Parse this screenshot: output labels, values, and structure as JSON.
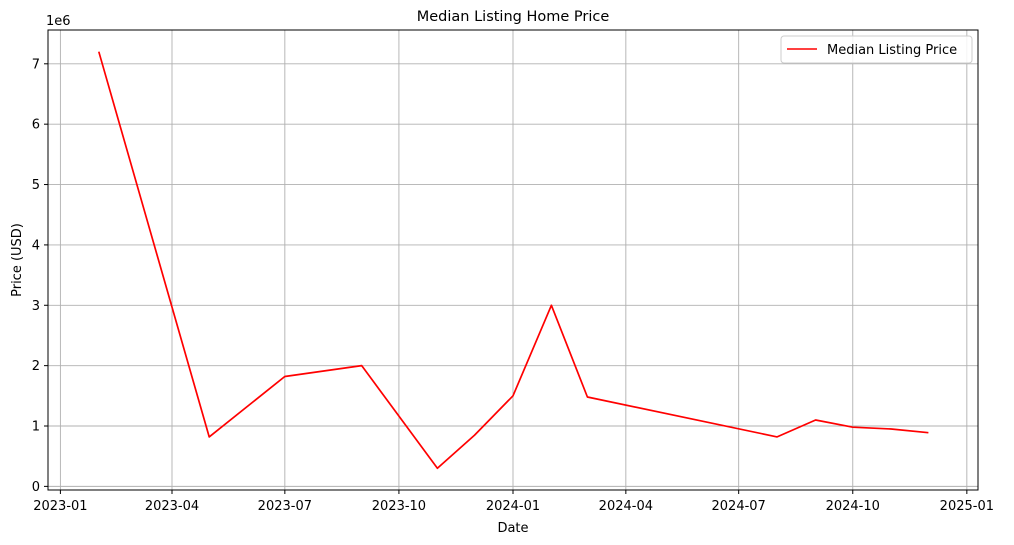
{
  "chart_data": {
    "type": "line",
    "title": "Median Listing Home Price",
    "xlabel": "Date",
    "ylabel": "Price (USD)",
    "y_scale_label": "1e6",
    "y_multiplier": 1000000,
    "grid": true,
    "legend_placement": "top-right",
    "x_ticks": [
      "2023-01",
      "2023-04",
      "2023-07",
      "2023-10",
      "2024-01",
      "2024-04",
      "2024-07",
      "2024-10",
      "2025-01"
    ],
    "y_ticks": [
      "0",
      "1",
      "2",
      "3",
      "4",
      "5",
      "6",
      "7"
    ],
    "xlim": [
      "2022-12-22",
      "2025-01-10"
    ],
    "ylim": [
      -60000,
      7560000
    ],
    "series": [
      {
        "name": "Median Listing Price",
        "color": "#ff0000",
        "points": [
          {
            "date": "2023-02-01",
            "value": 7200000
          },
          {
            "date": "2023-05-01",
            "value": 820000
          },
          {
            "date": "2023-07-01",
            "value": 1820000
          },
          {
            "date": "2023-09-01",
            "value": 2000000
          },
          {
            "date": "2023-11-01",
            "value": 300000
          },
          {
            "date": "2023-12-01",
            "value": 850000
          },
          {
            "date": "2024-01-01",
            "value": 1500000
          },
          {
            "date": "2024-02-01",
            "value": 3000000
          },
          {
            "date": "2024-03-01",
            "value": 1480000
          },
          {
            "date": "2024-08-01",
            "value": 820000
          },
          {
            "date": "2024-09-01",
            "value": 1100000
          },
          {
            "date": "2024-10-01",
            "value": 980000
          },
          {
            "date": "2024-11-01",
            "value": 950000
          },
          {
            "date": "2024-12-01",
            "value": 890000
          }
        ]
      }
    ]
  }
}
